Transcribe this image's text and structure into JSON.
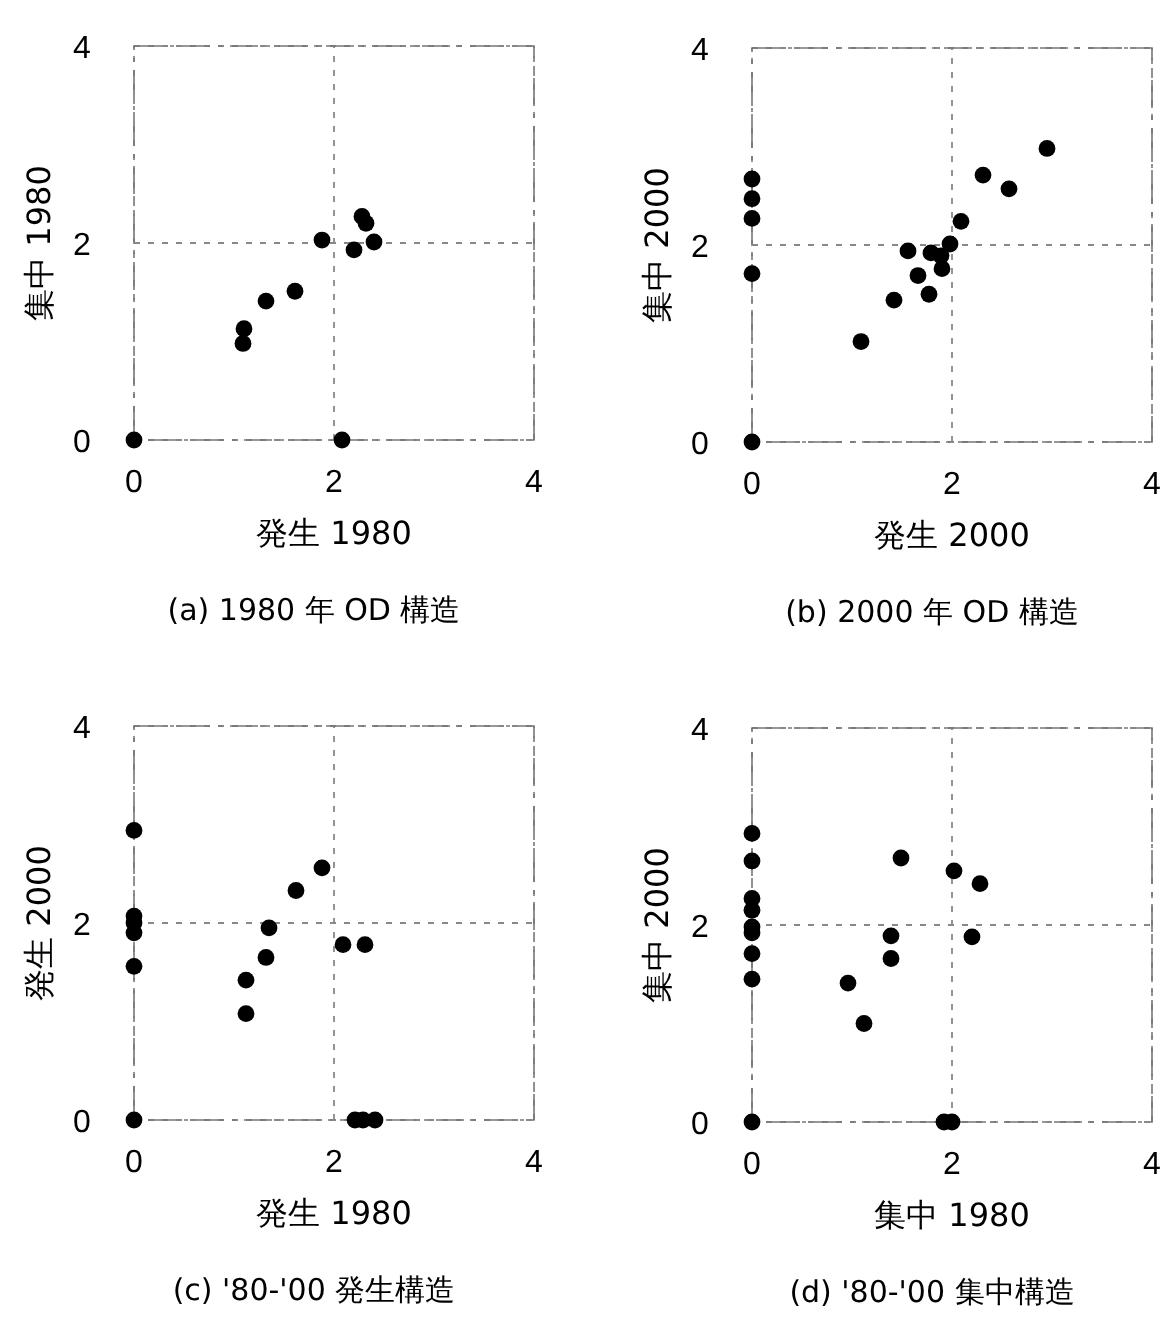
{
  "chart_data": [
    {
      "type": "scatter",
      "title": "(a) 1980 年 OD 構造",
      "xlabel": "発生 1980",
      "ylabel": "集中 1980",
      "xlim": [
        0,
        4
      ],
      "ylim": [
        0,
        4
      ],
      "xticks": [
        0,
        2,
        4
      ],
      "yticks": [
        0,
        2,
        4
      ],
      "grid": true,
      "marker": "circle",
      "series": [
        {
          "color": "#000000",
          "x": [
            0,
            1.1,
            1.09,
            1.32,
            1.61,
            1.88,
            2.2,
            2.28,
            2.32,
            2.4,
            2.08
          ],
          "values": [
            0,
            1.13,
            0.98,
            1.41,
            1.51,
            2.03,
            1.93,
            2.27,
            2.2,
            2.01,
            0
          ]
        }
      ]
    },
    {
      "type": "scatter",
      "title": "(b) 2000 年 OD 構造",
      "xlabel": "発生 2000",
      "ylabel": "集中 2000",
      "xlim": [
        0,
        4
      ],
      "ylim": [
        0,
        4
      ],
      "xticks": [
        0,
        2,
        4
      ],
      "yticks": [
        0,
        2,
        4
      ],
      "grid": true,
      "marker": "circle",
      "series": [
        {
          "color": "#000000",
          "x": [
            0,
            0,
            0,
            0,
            0,
            1.09,
            1.42,
            1.56,
            1.66,
            1.77,
            1.79,
            1.89,
            1.9,
            1.98,
            2.09,
            2.31,
            2.57,
            2.95
          ],
          "values": [
            2.67,
            2.47,
            2.27,
            1.71,
            0,
            1.02,
            1.44,
            1.94,
            1.69,
            1.5,
            1.92,
            1.89,
            1.76,
            2.01,
            2.24,
            2.71,
            2.57,
            2.98
          ]
        }
      ]
    },
    {
      "type": "scatter",
      "title": "(c) '80-'00 発生構造",
      "xlabel": "発生 1980",
      "ylabel": "発生 2000",
      "xlim": [
        0,
        4
      ],
      "ylim": [
        0,
        4
      ],
      "xticks": [
        0,
        2,
        4
      ],
      "yticks": [
        0,
        2,
        4
      ],
      "grid": true,
      "marker": "circle",
      "series": [
        {
          "color": "#000000",
          "x": [
            0,
            0,
            0,
            0,
            0,
            0,
            1.12,
            1.12,
            1.32,
            1.35,
            1.62,
            1.88,
            2.09,
            2.31,
            2.21,
            2.29,
            2.41
          ],
          "values": [
            2.94,
            2.07,
            2.0,
            1.9,
            1.56,
            0,
            1.42,
            1.08,
            1.65,
            1.95,
            2.33,
            2.56,
            1.78,
            1.78,
            0,
            0,
            0
          ]
        }
      ]
    },
    {
      "type": "scatter",
      "title": "(d) '80-'00 集中構造",
      "xlabel": "集中 1980",
      "ylabel": "集中 2000",
      "xlim": [
        0,
        4
      ],
      "ylim": [
        0,
        4
      ],
      "xticks": [
        0,
        2,
        4
      ],
      "yticks": [
        0,
        2,
        4
      ],
      "grid": true,
      "marker": "circle",
      "series": [
        {
          "color": "#000000",
          "x": [
            0,
            0,
            0,
            0,
            0,
            0,
            0,
            0,
            0,
            0.96,
            1.12,
            1.39,
            1.39,
            1.49,
            2.02,
            2.28,
            2.2,
            1.92,
            2.0
          ],
          "values": [
            2.93,
            2.65,
            2.27,
            2.15,
            1.98,
            1.92,
            1.71,
            1.45,
            0,
            1.41,
            1.0,
            1.66,
            1.89,
            2.68,
            2.55,
            2.42,
            1.88,
            0,
            0
          ]
        }
      ]
    }
  ]
}
